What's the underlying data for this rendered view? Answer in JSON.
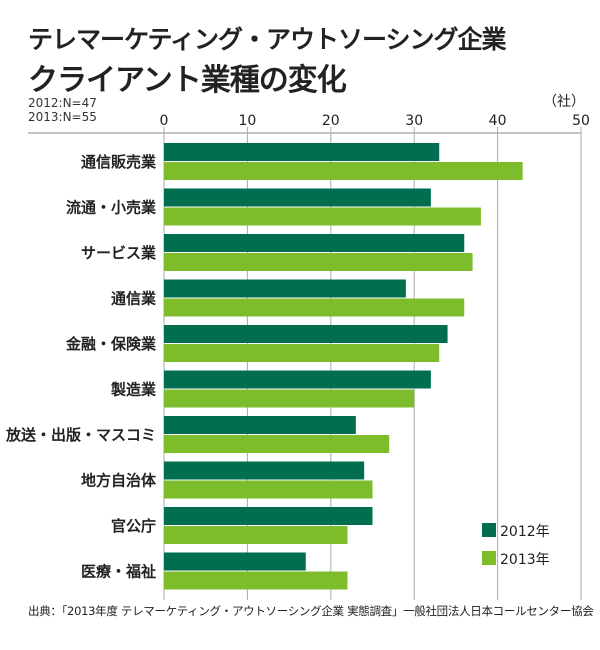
{
  "title": "テレマーケティング・アウトソーシング企業",
  "subtitle": "クライアント業種の変化",
  "sample_notes": [
    "2012:N=47",
    "2013:N=55"
  ],
  "source": "出典：「2013年度 テレマーケティング・アウトソーシング企業 実態調査」一般社団法人日本コールセンター協会",
  "chart_data": {
    "type": "bar",
    "orientation": "horizontal",
    "unit": "（社）",
    "xlim": [
      0,
      50
    ],
    "ticks": [
      "0",
      "10",
      "20",
      "30",
      "40",
      "50"
    ],
    "grid": true,
    "legend_position": "bottom-right",
    "categories": [
      "通信販売業",
      "流通・小売業",
      "サービス業",
      "通信業",
      "金融・保険業",
      "製造業",
      "放送・出版・マスコミ",
      "地方自治体",
      "官公庁",
      "医療・福祉"
    ],
    "series": [
      {
        "name": "2012年",
        "color": "#006e4f",
        "values": [
          33,
          32,
          36,
          29,
          34,
          32,
          23,
          24,
          25,
          17
        ]
      },
      {
        "name": "2013年",
        "color": "#7dbd2c",
        "values": [
          43,
          38,
          37,
          36,
          33,
          30,
          27,
          25,
          22,
          22
        ]
      }
    ]
  }
}
